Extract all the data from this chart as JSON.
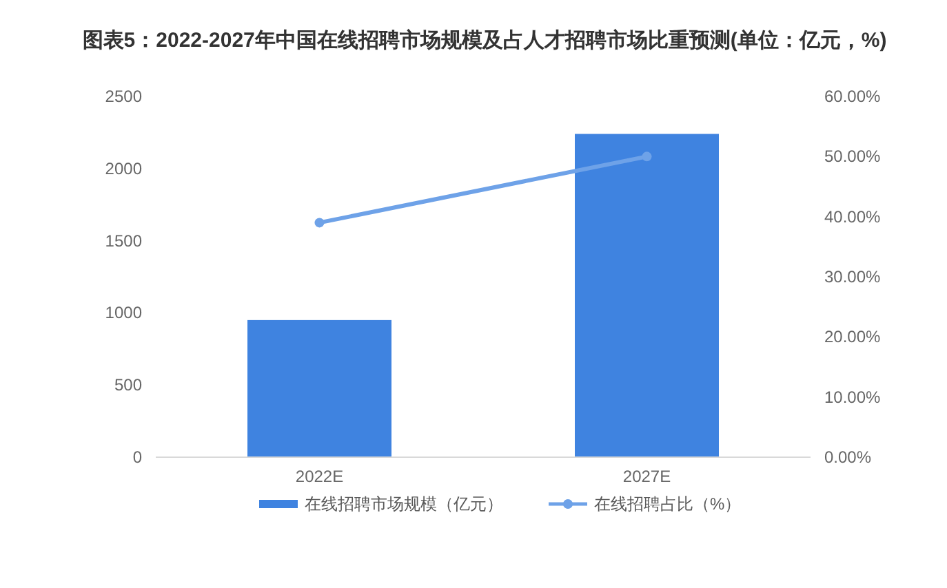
{
  "chart_data": {
    "type": "bar",
    "title": "图表5：2022-2027年中国在线招聘市场规模及占人才招聘市场比重预测(单位：亿元，%)",
    "categories": [
      "2022E",
      "2027E"
    ],
    "series": [
      {
        "name": "在线招聘市场规模（亿元）",
        "color": "#3f83e0",
        "values": [
          950,
          2240
        ]
      },
      {
        "name": "在线招聘占比（%）",
        "type": "line",
        "axis": "y2",
        "color": "#6ea2e8",
        "values": [
          39,
          50
        ]
      }
    ],
    "ylim": [
      0,
      2500
    ],
    "yticks": [
      0,
      500,
      1000,
      1500,
      2000,
      2500
    ],
    "y2lim": [
      0,
      60
    ],
    "y2ticks": [
      {
        "value": 0,
        "label": "0.00%"
      },
      {
        "value": 10,
        "label": "10.00%"
      },
      {
        "value": 20,
        "label": "20.00%"
      },
      {
        "value": 30,
        "label": "30.00%"
      },
      {
        "value": 40,
        "label": "40.00%"
      },
      {
        "value": 50,
        "label": "50.00%"
      },
      {
        "value": 60,
        "label": "60.00%"
      }
    ],
    "grid": false,
    "legend": "bottom",
    "marker": "circle",
    "line_style": "solid"
  }
}
